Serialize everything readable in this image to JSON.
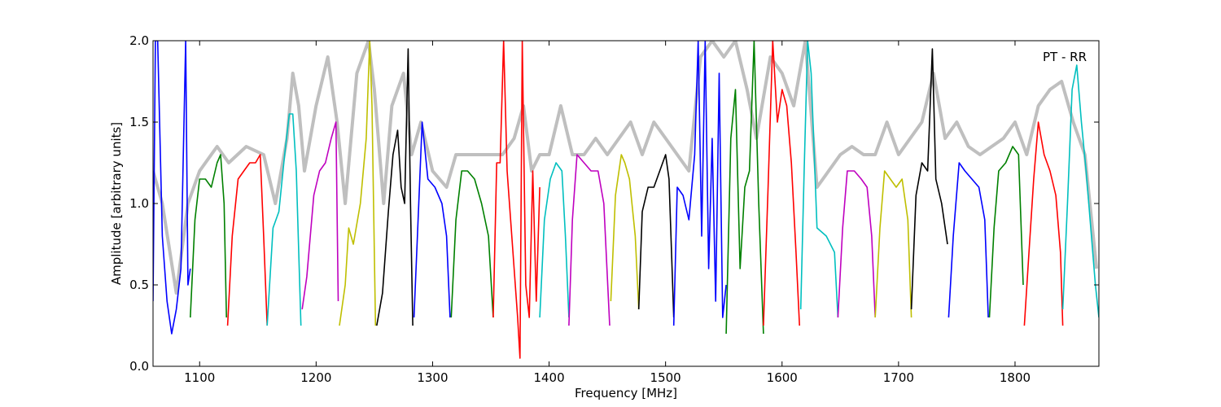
{
  "chart_data": {
    "type": "line",
    "title": "",
    "annotation": "PT - RR",
    "xlabel": "Frequency [MHz]",
    "ylabel": "Amplitude [arbitrary units]",
    "xlim": [
      1060,
      1872
    ],
    "ylim": [
      0.0,
      2.0
    ],
    "x_ticks": [
      1100,
      1200,
      1300,
      1400,
      1500,
      1600,
      1700,
      1800
    ],
    "y_ticks": [
      0.0,
      0.5,
      1.0,
      1.5,
      2.0
    ],
    "x_tick_labels": [
      "1100",
      "1200",
      "1300",
      "1400",
      "1500",
      "1600",
      "1700",
      "1800"
    ],
    "y_tick_labels": [
      "0.0",
      "0.5",
      "1.0",
      "1.5",
      "2.0"
    ],
    "grid": false,
    "background_series": {
      "color": "#bfbfbf",
      "x": [
        1060,
        1068,
        1080,
        1090,
        1100,
        1115,
        1125,
        1140,
        1155,
        1165,
        1175,
        1180,
        1185,
        1190,
        1200,
        1210,
        1218,
        1225,
        1235,
        1245,
        1250,
        1258,
        1265,
        1275,
        1282,
        1290,
        1300,
        1312,
        1320,
        1335,
        1350,
        1360,
        1370,
        1378,
        1385,
        1392,
        1400,
        1410,
        1420,
        1430,
        1440,
        1450,
        1460,
        1470,
        1480,
        1490,
        1500,
        1510,
        1520,
        1530,
        1540,
        1550,
        1560,
        1570,
        1578,
        1590,
        1600,
        1610,
        1620,
        1630,
        1640,
        1650,
        1660,
        1670,
        1680,
        1690,
        1700,
        1710,
        1720,
        1730,
        1740,
        1750,
        1760,
        1770,
        1780,
        1790,
        1800,
        1810,
        1820,
        1830,
        1840,
        1850,
        1860,
        1870
      ],
      "y": [
        1.2,
        1.0,
        0.45,
        1.0,
        1.2,
        1.35,
        1.25,
        1.35,
        1.3,
        1.0,
        1.4,
        1.8,
        1.6,
        1.2,
        1.6,
        1.9,
        1.5,
        1.0,
        1.8,
        2.0,
        1.7,
        1.0,
        1.6,
        1.8,
        1.3,
        1.5,
        1.2,
        1.1,
        1.3,
        1.3,
        1.3,
        1.3,
        1.4,
        1.6,
        1.2,
        1.3,
        1.3,
        1.6,
        1.3,
        1.3,
        1.4,
        1.3,
        1.4,
        1.5,
        1.3,
        1.5,
        1.4,
        1.3,
        1.2,
        1.9,
        2.0,
        1.9,
        2.0,
        1.7,
        1.4,
        1.9,
        1.8,
        1.6,
        2.0,
        1.1,
        1.2,
        1.3,
        1.35,
        1.3,
        1.3,
        1.5,
        1.3,
        1.4,
        1.5,
        1.8,
        1.4,
        1.5,
        1.35,
        1.3,
        1.35,
        1.4,
        1.5,
        1.3,
        1.6,
        1.7,
        1.75,
        1.5,
        1.3,
        0.6
      ]
    },
    "series": [
      {
        "color": "#0000ff",
        "x": [
          1060,
          1062,
          1064,
          1068,
          1072,
          1076,
          1080,
          1084,
          1088,
          1090,
          1092
        ],
        "y": [
          0.4,
          2.0,
          2.0,
          0.8,
          0.4,
          0.2,
          0.35,
          0.6,
          2.0,
          0.5,
          0.6
        ]
      },
      {
        "color": "#008000",
        "x": [
          1092,
          1096,
          1100,
          1105,
          1110,
          1115,
          1118,
          1121,
          1123
        ],
        "y": [
          0.3,
          0.9,
          1.15,
          1.15,
          1.1,
          1.25,
          1.3,
          1.0,
          0.3
        ]
      },
      {
        "color": "#ff0000",
        "x": [
          1124,
          1128,
          1133,
          1138,
          1143,
          1148,
          1152,
          1155,
          1158
        ],
        "y": [
          0.25,
          0.8,
          1.15,
          1.2,
          1.25,
          1.25,
          1.3,
          0.8,
          0.25
        ]
      },
      {
        "color": "#00bfbf",
        "x": [
          1158,
          1163,
          1168,
          1173,
          1177,
          1180,
          1183,
          1187
        ],
        "y": [
          0.25,
          0.85,
          0.95,
          1.3,
          1.55,
          1.55,
          1.2,
          0.25
        ]
      },
      {
        "color": "#bf00bf",
        "x": [
          1188,
          1192,
          1198,
          1203,
          1208,
          1213,
          1217,
          1219
        ],
        "y": [
          0.35,
          0.55,
          1.05,
          1.2,
          1.25,
          1.4,
          1.5,
          0.4
        ]
      },
      {
        "color": "#bfbf00",
        "x": [
          1220,
          1225,
          1228,
          1232,
          1238,
          1243,
          1246,
          1248,
          1251
        ],
        "y": [
          0.25,
          0.5,
          0.85,
          0.75,
          1.0,
          1.4,
          2.0,
          1.6,
          0.25
        ]
      },
      {
        "color": "#000000",
        "x": [
          1252,
          1257,
          1262,
          1266,
          1270,
          1273,
          1276,
          1279,
          1281,
          1283
        ],
        "y": [
          0.25,
          0.45,
          0.95,
          1.3,
          1.45,
          1.1,
          1.0,
          1.95,
          1.0,
          0.25
        ]
      },
      {
        "color": "#0000ff",
        "x": [
          1284,
          1287,
          1291,
          1296,
          1302,
          1308,
          1312,
          1315
        ],
        "y": [
          0.3,
          0.8,
          1.5,
          1.15,
          1.1,
          1.0,
          0.8,
          0.3
        ]
      },
      {
        "color": "#008000",
        "x": [
          1316,
          1320,
          1325,
          1330,
          1336,
          1342,
          1348,
          1352
        ],
        "y": [
          0.3,
          0.9,
          1.2,
          1.2,
          1.15,
          1.0,
          0.8,
          0.3
        ]
      },
      {
        "color": "#ff0000",
        "x": [
          1352,
          1355,
          1358,
          1361,
          1364,
          1367,
          1370,
          1373,
          1375,
          1377,
          1380,
          1383,
          1386,
          1389,
          1392
        ],
        "y": [
          0.3,
          1.25,
          1.25,
          2.0,
          1.2,
          0.9,
          0.6,
          0.3,
          0.05,
          2.0,
          0.5,
          0.3,
          1.2,
          0.4,
          1.1
        ]
      },
      {
        "color": "#00bfbf",
        "x": [
          1392,
          1396,
          1401,
          1406,
          1411,
          1414,
          1417
        ],
        "y": [
          0.3,
          0.9,
          1.15,
          1.25,
          1.2,
          0.8,
          0.3
        ]
      },
      {
        "color": "#bf00bf",
        "x": [
          1417,
          1420,
          1424,
          1430,
          1436,
          1442,
          1447,
          1452
        ],
        "y": [
          0.25,
          0.9,
          1.3,
          1.25,
          1.2,
          1.2,
          1.0,
          0.25
        ]
      },
      {
        "color": "#bfbf00",
        "x": [
          1453,
          1457,
          1462,
          1465,
          1469,
          1474,
          1477
        ],
        "y": [
          0.4,
          1.05,
          1.3,
          1.25,
          1.15,
          0.8,
          0.35
        ]
      },
      {
        "color": "#000000",
        "x": [
          1477,
          1480,
          1485,
          1490,
          1495,
          1500,
          1503,
          1507
        ],
        "y": [
          0.35,
          0.95,
          1.1,
          1.1,
          1.2,
          1.3,
          1.15,
          0.3
        ]
      },
      {
        "color": "#0000ff",
        "x": [
          1507,
          1510,
          1515,
          1520,
          1525,
          1528,
          1531,
          1534,
          1537,
          1540,
          1543,
          1546,
          1549,
          1552
        ],
        "y": [
          0.25,
          1.1,
          1.05,
          0.9,
          1.3,
          2.0,
          0.8,
          2.0,
          0.6,
          1.4,
          0.4,
          1.8,
          0.3,
          0.5
        ]
      },
      {
        "color": "#008000",
        "x": [
          1552,
          1556,
          1560,
          1564,
          1568,
          1572,
          1576,
          1580,
          1584
        ],
        "y": [
          0.2,
          1.4,
          1.7,
          0.6,
          1.1,
          1.2,
          2.0,
          1.0,
          0.2
        ]
      },
      {
        "color": "#ff0000",
        "x": [
          1584,
          1588,
          1592,
          1596,
          1600,
          1604,
          1608,
          1612,
          1615
        ],
        "y": [
          0.25,
          1.1,
          2.0,
          1.5,
          1.7,
          1.6,
          1.25,
          0.7,
          0.25
        ]
      },
      {
        "color": "#00bfbf",
        "x": [
          1616,
          1619,
          1622,
          1625,
          1630,
          1638,
          1645,
          1648
        ],
        "y": [
          0.35,
          1.2,
          2.0,
          1.8,
          0.85,
          0.8,
          0.7,
          0.3
        ]
      },
      {
        "color": "#bf00bf",
        "x": [
          1648,
          1652,
          1656,
          1662,
          1668,
          1673,
          1677,
          1680
        ],
        "y": [
          0.3,
          0.85,
          1.2,
          1.2,
          1.15,
          1.1,
          0.8,
          0.3
        ]
      },
      {
        "color": "#bfbf00",
        "x": [
          1680,
          1684,
          1688,
          1693,
          1698,
          1703,
          1708,
          1711
        ],
        "y": [
          0.3,
          0.85,
          1.2,
          1.15,
          1.1,
          1.15,
          0.9,
          0.3
        ]
      },
      {
        "color": "#000000",
        "x": [
          1711,
          1715,
          1720,
          1725,
          1729,
          1732,
          1737,
          1742
        ],
        "y": [
          0.35,
          1.05,
          1.25,
          1.2,
          1.95,
          1.15,
          1.0,
          0.75
        ]
      },
      {
        "color": "#0000ff",
        "x": [
          1743,
          1747,
          1752,
          1757,
          1763,
          1769,
          1774,
          1777
        ],
        "y": [
          0.3,
          0.8,
          1.25,
          1.2,
          1.15,
          1.1,
          0.9,
          0.3
        ]
      },
      {
        "color": "#008000",
        "x": [
          1778,
          1782,
          1786,
          1792,
          1798,
          1803,
          1807
        ],
        "y": [
          0.3,
          0.85,
          1.2,
          1.25,
          1.35,
          1.3,
          0.5
        ]
      },
      {
        "color": "#ff0000",
        "x": [
          1808,
          1812,
          1816,
          1820,
          1825,
          1830,
          1835,
          1839,
          1841
        ],
        "y": [
          0.25,
          0.7,
          1.15,
          1.5,
          1.3,
          1.2,
          1.05,
          0.7,
          0.25
        ]
      },
      {
        "color": "#00bfbf",
        "x": [
          1841,
          1845,
          1849,
          1853,
          1857,
          1861,
          1865,
          1869,
          1872
        ],
        "y": [
          0.35,
          1.0,
          1.7,
          1.85,
          1.5,
          1.2,
          0.85,
          0.5,
          0.3
        ]
      }
    ]
  }
}
